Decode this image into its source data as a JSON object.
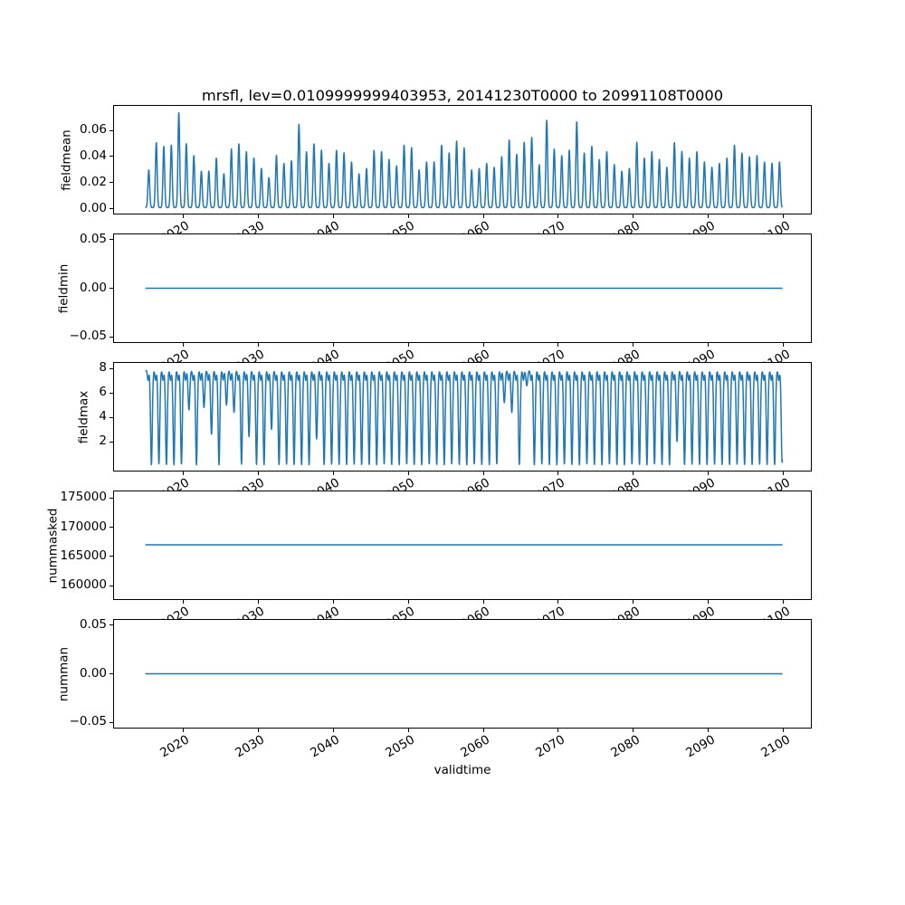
{
  "figure": {
    "background": "#ffffff"
  },
  "chart_data": {
    "type": "line",
    "title": "mrsfl, lev=0.0109999999403953, 20141230T0000 to 20991108T0000",
    "xlabel": "validtime",
    "line_color": "#1f77b4",
    "grid": false,
    "legend": false,
    "x_axis": {
      "ticks": [
        2020,
        2030,
        2040,
        2050,
        2060,
        2070,
        2080,
        2090,
        2100
      ],
      "tick_labels": [
        "2020",
        "2030",
        "2040",
        "2050",
        "2060",
        "2070",
        "2080",
        "2090",
        "2100"
      ],
      "lim": [
        2010.7,
        2103.75
      ],
      "data_start": 2014.99,
      "data_end": 2099.85
    },
    "subplots": [
      {
        "ylabel": "fieldmean",
        "ylim": [
          -0.0045,
          0.0795
        ],
        "yticks": [
          {
            "v": 0.0,
            "label": "0.00"
          },
          {
            "v": 0.02,
            "label": "0.02"
          },
          {
            "v": 0.04,
            "label": "0.04"
          },
          {
            "v": 0.06,
            "label": "0.06"
          }
        ],
        "kind": "annual_spikes",
        "baseline": 0.0008,
        "spike_center_offset": 0.45,
        "spike_sigma": 0.16,
        "peaks": [
          0.029,
          0.05,
          0.047,
          0.048,
          0.073,
          0.049,
          0.04,
          0.028,
          0.028,
          0.038,
          0.026,
          0.045,
          0.049,
          0.043,
          0.038,
          0.03,
          0.023,
          0.04,
          0.034,
          0.036,
          0.064,
          0.043,
          0.049,
          0.044,
          0.034,
          0.044,
          0.042,
          0.035,
          0.026,
          0.03,
          0.044,
          0.043,
          0.037,
          0.032,
          0.048,
          0.046,
          0.029,
          0.035,
          0.035,
          0.048,
          0.042,
          0.051,
          0.046,
          0.029,
          0.03,
          0.034,
          0.031,
          0.039,
          0.052,
          0.041,
          0.05,
          0.054,
          0.033,
          0.067,
          0.045,
          0.04,
          0.044,
          0.066,
          0.042,
          0.047,
          0.037,
          0.043,
          0.033,
          0.028,
          0.03,
          0.05,
          0.038,
          0.043,
          0.037,
          0.031,
          0.05,
          0.043,
          0.038,
          0.043,
          0.035,
          0.031,
          0.034,
          0.038,
          0.048,
          0.042,
          0.039,
          0.04,
          0.035,
          0.034,
          0.035
        ]
      },
      {
        "ylabel": "fieldmin",
        "ylim": [
          -0.0565,
          0.0565
        ],
        "yticks": [
          {
            "v": -0.05,
            "label": "−0.05"
          },
          {
            "v": 0.0,
            "label": "0.00"
          },
          {
            "v": 0.05,
            "label": "0.05"
          }
        ],
        "kind": "constant",
        "value": 0.0
      },
      {
        "ylabel": "fieldmax",
        "ylim": [
          -0.45,
          8.55
        ],
        "yticks": [
          {
            "v": 2,
            "label": "2"
          },
          {
            "v": 4,
            "label": "4"
          },
          {
            "v": 6,
            "label": "6"
          },
          {
            "v": 8,
            "label": "8"
          }
        ],
        "kind": "annual_plateau_dips",
        "plateau": 7.85,
        "dip_center_offset": 0.8,
        "dip_sigma": 0.16,
        "notch_offset": 0.35,
        "notch_depth": 0.8,
        "notch_sigma": 0.12,
        "dips": [
          0.1,
          0.15,
          0.1,
          0.1,
          0.15,
          4.6,
          0.1,
          4.8,
          2.6,
          0.1,
          5.0,
          4.4,
          0.15,
          2.4,
          0.1,
          0.1,
          3.0,
          0.1,
          0.15,
          0.1,
          0.1,
          0.1,
          2.2,
          0.1,
          0.15,
          0.1,
          0.1,
          0.15,
          0.1,
          0.1,
          0.1,
          0.15,
          0.1,
          0.1,
          0.15,
          0.1,
          0.1,
          0.15,
          0.1,
          0.1,
          0.15,
          0.1,
          0.1,
          0.15,
          0.1,
          0.1,
          0.15,
          5.2,
          4.4,
          0.1,
          6.6,
          0.1,
          0.15,
          0.1,
          0.1,
          0.15,
          0.1,
          0.1,
          0.15,
          0.1,
          0.1,
          0.15,
          0.1,
          0.1,
          0.15,
          0.1,
          0.1,
          0.15,
          0.1,
          0.1,
          2.0,
          0.1,
          0.15,
          0.1,
          0.1,
          0.15,
          0.1,
          0.1,
          0.15,
          0.1,
          0.1,
          0.15,
          0.1,
          0.1,
          0.3
        ]
      },
      {
        "ylabel": "nummasked",
        "ylim": [
          157600,
          176250
        ],
        "yticks": [
          {
            "v": 160000,
            "label": "160000"
          },
          {
            "v": 165000,
            "label": "165000"
          },
          {
            "v": 170000,
            "label": "170000"
          },
          {
            "v": 175000,
            "label": "175000"
          }
        ],
        "kind": "constant",
        "value": 167000
      },
      {
        "ylabel": "numman",
        "ylim": [
          -0.0565,
          0.0565
        ],
        "yticks": [
          {
            "v": -0.05,
            "label": "−0.05"
          },
          {
            "v": 0.0,
            "label": "0.00"
          },
          {
            "v": 0.05,
            "label": "0.05"
          }
        ],
        "kind": "constant",
        "value": 0.0
      }
    ]
  }
}
